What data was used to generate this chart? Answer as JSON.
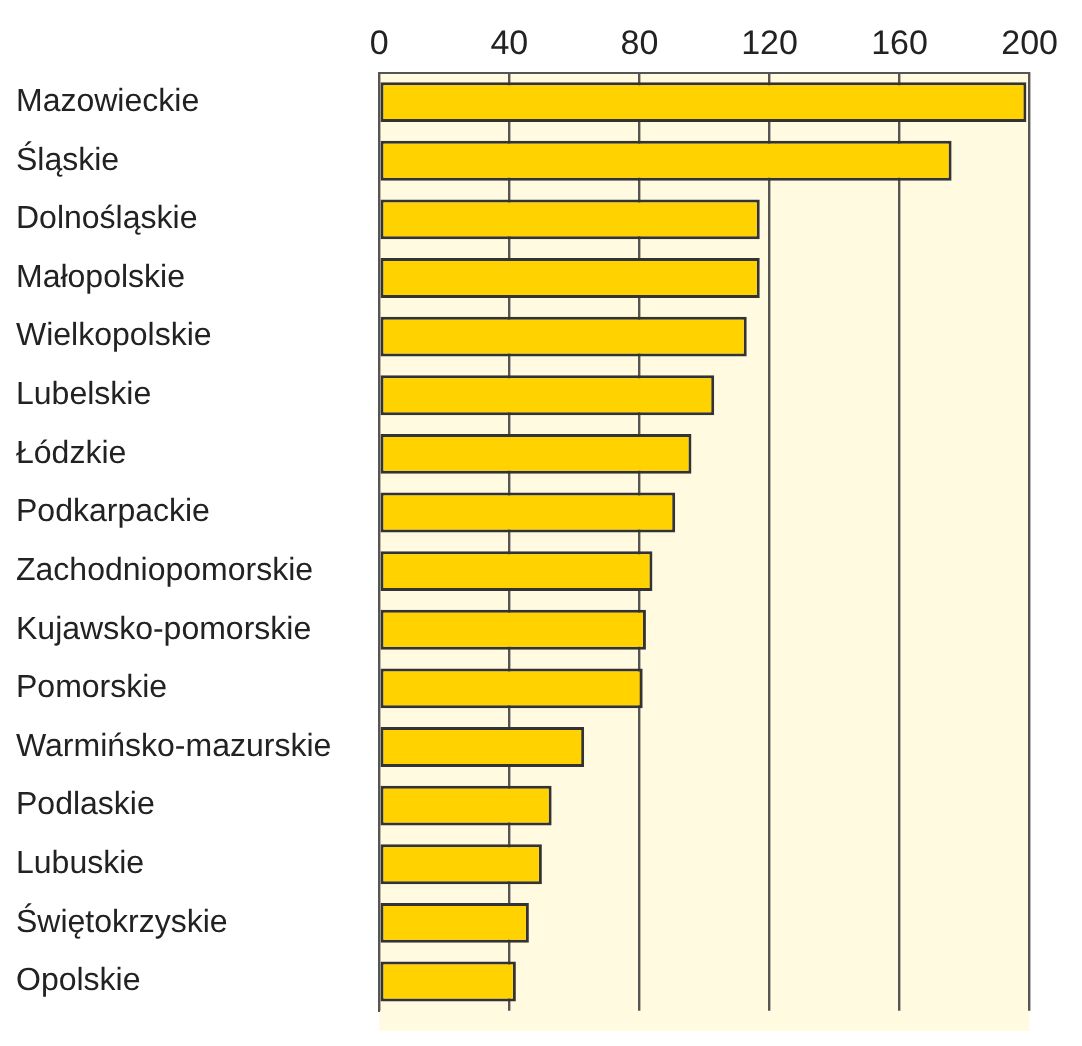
{
  "chart_data": {
    "type": "bar",
    "orientation": "horizontal",
    "categories": [
      "Mazowieckie",
      "Śląskie",
      "Dolnośląskie",
      "Małopolskie",
      "Wielkopolskie",
      "Lubelskie",
      "Łódzkie",
      "Podkarpackie",
      "Zachodniopomorskie",
      "Kujawsko-pomorskie",
      "Pomorskie",
      "Warmińsko-mazurskie",
      "Podlaskie",
      "Lubuskie",
      "Świętokrzyskie",
      "Opolskie"
    ],
    "values": [
      199,
      176,
      117,
      117,
      113,
      103,
      96,
      91,
      84,
      82,
      81,
      63,
      53,
      50,
      46,
      42
    ],
    "color": "#ffd200",
    "xlim": [
      0,
      200
    ],
    "xticks": [
      0,
      40,
      80,
      120,
      160,
      200
    ],
    "grid": "x",
    "legend": false
  }
}
